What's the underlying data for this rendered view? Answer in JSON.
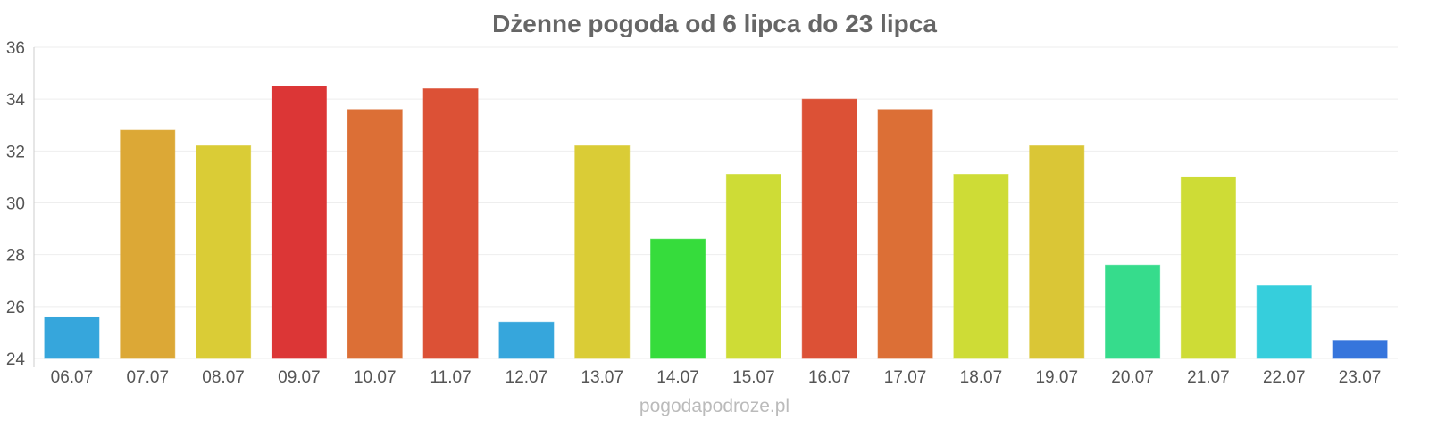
{
  "chart_data": {
    "type": "bar",
    "title": "Dżenne pogoda od 6 lipca do 23 lipca",
    "categories": [
      "06.07",
      "07.07",
      "08.07",
      "09.07",
      "10.07",
      "11.07",
      "12.07",
      "13.07",
      "14.07",
      "15.07",
      "16.07",
      "17.07",
      "18.07",
      "19.07",
      "20.07",
      "21.07",
      "22.07",
      "23.07"
    ],
    "values": [
      25.6,
      32.8,
      32.2,
      34.5,
      33.6,
      34.4,
      25.4,
      32.2,
      28.6,
      31.1,
      34.0,
      33.6,
      31.1,
      32.2,
      27.6,
      31.0,
      26.8,
      24.7
    ],
    "colors": [
      "#36a6dc",
      "#dca836",
      "#dacc36",
      "#dc3636",
      "#dc6f36",
      "#dc5136",
      "#36a6dc",
      "#dacc36",
      "#36dc3c",
      "#cedc36",
      "#dc5136",
      "#dc6f36",
      "#cedc36",
      "#dac636",
      "#36dc8c",
      "#cedc36",
      "#36cedc",
      "#3675dc"
    ],
    "ylim": [
      24,
      36
    ],
    "yticks": [
      24,
      26,
      28,
      30,
      32,
      34,
      36
    ],
    "grid": true,
    "legend": "none"
  },
  "watermark": "pogodapodroze.pl"
}
